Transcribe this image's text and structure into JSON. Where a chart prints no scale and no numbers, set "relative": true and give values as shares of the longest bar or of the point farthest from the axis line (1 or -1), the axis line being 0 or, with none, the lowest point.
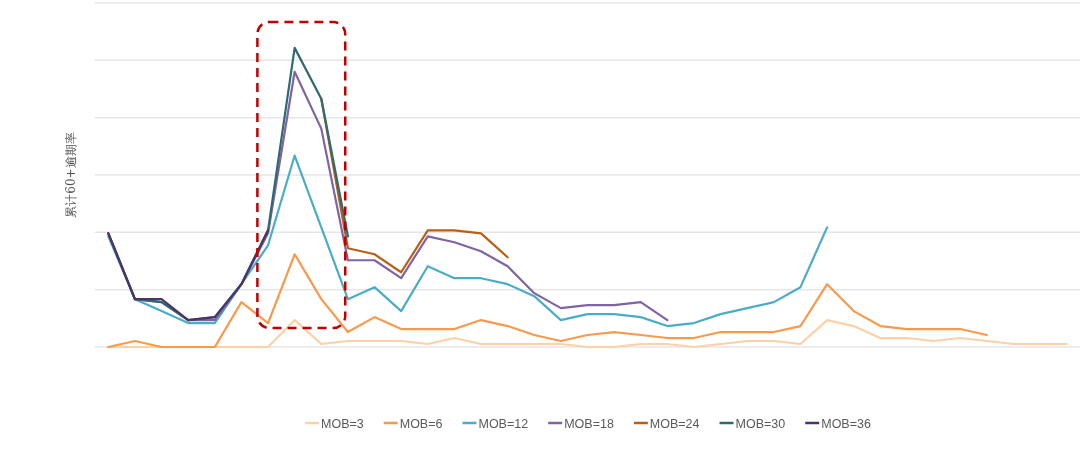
{
  "chart_data": {
    "type": "line",
    "relative": true,
    "ylabel": "累计60+逾期率",
    "grid": "y",
    "legend": "bottom",
    "marker": "none",
    "line_style": "solid",
    "categories": [
      null,
      null,
      null,
      null,
      null,
      null,
      null,
      null,
      null,
      null,
      null,
      null,
      null,
      null,
      null,
      null,
      null,
      null,
      null,
      null,
      null,
      null,
      null,
      null,
      null,
      null,
      null,
      null,
      null,
      null,
      null,
      null,
      null,
      null,
      null,
      null,
      null
    ],
    "series": [
      {
        "name": "MOB=3",
        "color": "#fdd0a8",
        "values": [
          0,
          0,
          0,
          0,
          0,
          0,
          0,
          0.09,
          0.01,
          0.02,
          0.02,
          0.02,
          0.01,
          0.03,
          0.01,
          0.01,
          0.01,
          0.01,
          0,
          0,
          0.01,
          0.01,
          0,
          0.01,
          0.02,
          0.02,
          0.01,
          0.09,
          0.07,
          0.03,
          0.03,
          0.02,
          0.03,
          0.02,
          0.01,
          0.01,
          0.01
        ]
      },
      {
        "name": "MOB=6",
        "color": "#f89a4e",
        "values": [
          0,
          0.02,
          0,
          0,
          0,
          0.15,
          0.08,
          0.31,
          0.16,
          0.05,
          0.1,
          0.06,
          0.06,
          0.06,
          0.09,
          0.07,
          0.04,
          0.02,
          0.04,
          0.05,
          0.04,
          0.03,
          0.03,
          0.05,
          0.05,
          0.05,
          0.07,
          0.21,
          0.12,
          0.07,
          0.06,
          0.06,
          0.06,
          0.04,
          null,
          null,
          null
        ]
      },
      {
        "name": "MOB=12",
        "color": "#4bacc6",
        "values": [
          0.37,
          0.16,
          0.12,
          0.08,
          0.08,
          0.21,
          0.34,
          0.64,
          0.4,
          0.16,
          0.2,
          0.12,
          0.27,
          0.23,
          0.23,
          0.21,
          0.17,
          0.09,
          0.11,
          0.11,
          0.1,
          0.07,
          0.08,
          0.11,
          0.13,
          0.15,
          0.2,
          0.4,
          null,
          null,
          null,
          null,
          null,
          null,
          null,
          null,
          null
        ]
      },
      {
        "name": "MOB=18",
        "color": "#8064a2",
        "values": [
          0.38,
          0.16,
          0.15,
          0.09,
          0.09,
          0.21,
          0.38,
          0.92,
          0.73,
          0.29,
          0.29,
          0.23,
          0.37,
          0.35,
          0.32,
          0.27,
          0.18,
          0.13,
          0.14,
          0.14,
          0.15,
          0.09,
          null,
          null,
          null,
          null,
          null,
          null,
          null,
          null,
          null,
          null,
          null,
          null,
          null,
          null,
          null
        ]
      },
      {
        "name": "MOB=24",
        "color": "#b85f17",
        "values": [
          null,
          null,
          null,
          null,
          null,
          null,
          null,
          null,
          0.83,
          0.33,
          0.31,
          0.25,
          0.39,
          0.39,
          0.38,
          0.3,
          null,
          null,
          null,
          null,
          null,
          null,
          null,
          null,
          null,
          null,
          null,
          null,
          null,
          null,
          null,
          null,
          null,
          null,
          null,
          null,
          null
        ]
      },
      {
        "name": "MOB=30",
        "color": "#2f6a72",
        "values": [
          0.38,
          0.16,
          0.15,
          0.09,
          0.1,
          0.21,
          0.39,
          1,
          0.83,
          0.37,
          null,
          null,
          null,
          null,
          null,
          null,
          null,
          null,
          null,
          null,
          null,
          null,
          null,
          null,
          null,
          null,
          null,
          null,
          null,
          null,
          null,
          null,
          null,
          null,
          null,
          null,
          null
        ]
      },
      {
        "name": "MOB=36",
        "color": "#4b3565",
        "values": [
          0.38,
          0.16,
          0.16,
          0.09,
          0.1,
          0.21,
          0.39,
          null,
          null,
          null,
          null,
          null,
          null,
          null,
          null,
          null,
          null,
          null,
          null,
          null,
          null,
          null,
          null,
          null,
          null,
          null,
          null,
          null,
          null,
          null,
          null,
          null,
          null,
          null,
          null,
          null,
          null
        ]
      }
    ]
  }
}
